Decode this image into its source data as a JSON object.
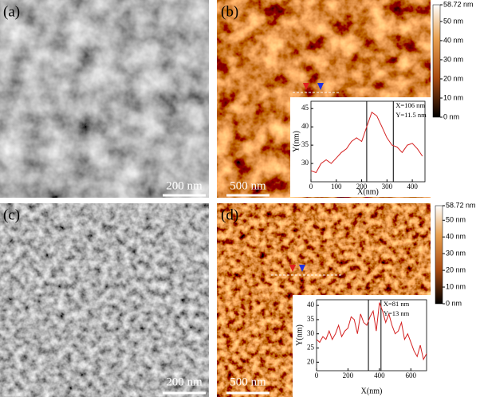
{
  "panels": [
    {
      "label": "(a)",
      "scale_bar": "200 nm"
    },
    {
      "label": "(b)",
      "scale_bar": "500 nm"
    },
    {
      "label": "(c)",
      "scale_bar": "200 nm"
    },
    {
      "label": "(d)",
      "scale_bar": "500 nm"
    }
  ],
  "colorbars": [
    {
      "lim": [
        0,
        58.72
      ],
      "ticks": [
        {
          "value": 58.72,
          "label": "58.72 nm"
        },
        {
          "value": 50,
          "label": "50 nm"
        },
        {
          "value": 40,
          "label": "40 nm"
        },
        {
          "value": 30,
          "label": "30 nm"
        },
        {
          "value": 20,
          "label": "20 nm"
        },
        {
          "value": 10,
          "label": "10 nm"
        },
        {
          "value": 0,
          "label": "0 nm"
        }
      ]
    },
    {
      "lim": [
        0,
        58.72
      ],
      "ticks": [
        {
          "value": 58.72,
          "label": "58.72 nm"
        },
        {
          "value": 50,
          "label": "50 nm"
        },
        {
          "value": 40,
          "label": "40 nm"
        },
        {
          "value": 30,
          "label": "30 nm"
        },
        {
          "value": 20,
          "label": "20 nm"
        },
        {
          "value": 10,
          "label": "10 nm"
        },
        {
          "value": 0,
          "label": "0 nm"
        }
      ]
    }
  ],
  "chart_data": [
    {
      "type": "line",
      "x_label": "X(nm)",
      "y_label": "Y(nm)",
      "annotations": [
        "X=106 nm",
        "Y=11.5 nm"
      ],
      "cursors": [
        220,
        325
      ],
      "x": [
        0,
        20,
        40,
        60,
        80,
        100,
        120,
        140,
        160,
        180,
        200,
        220,
        240,
        260,
        280,
        300,
        320,
        340,
        360,
        380,
        400,
        420,
        440
      ],
      "values": [
        28,
        27.5,
        30,
        31,
        30,
        31.5,
        33,
        34,
        36,
        37,
        36,
        40,
        44,
        43,
        40,
        37,
        35,
        34.5,
        33,
        35,
        35.5,
        34,
        32
      ],
      "color": "#d42020",
      "xlim": [
        0,
        450
      ],
      "ylim": [
        25,
        47
      ],
      "xticks": [
        0,
        100,
        200,
        300,
        400
      ],
      "yticks": [
        30,
        35,
        40,
        45
      ]
    },
    {
      "type": "line",
      "x_label": "X(nm)",
      "y_label": "Y(nm)",
      "annotations": [
        "X=81 nm",
        "Y=13 nm"
      ],
      "cursors": [
        330,
        410
      ],
      "x": [
        0,
        20,
        40,
        60,
        80,
        100,
        120,
        140,
        160,
        180,
        200,
        220,
        240,
        260,
        280,
        300,
        320,
        340,
        360,
        380,
        400,
        420,
        440,
        460,
        480,
        500,
        520,
        540,
        560,
        580,
        600,
        620,
        640,
        660,
        680,
        700
      ],
      "values": [
        28,
        27,
        29,
        28,
        31,
        28,
        30,
        33,
        29,
        31,
        32,
        36,
        35,
        30,
        37,
        34,
        33,
        36,
        38,
        31,
        41,
        38,
        34,
        37,
        33,
        30,
        31,
        34,
        28,
        30,
        27,
        24,
        22,
        26,
        21,
        23
      ],
      "color": "#d42020",
      "xlim": [
        0,
        700
      ],
      "ylim": [
        17,
        42
      ],
      "xticks": [
        0,
        200,
        400,
        600
      ],
      "yticks": [
        20,
        25,
        30,
        35,
        40
      ]
    }
  ]
}
